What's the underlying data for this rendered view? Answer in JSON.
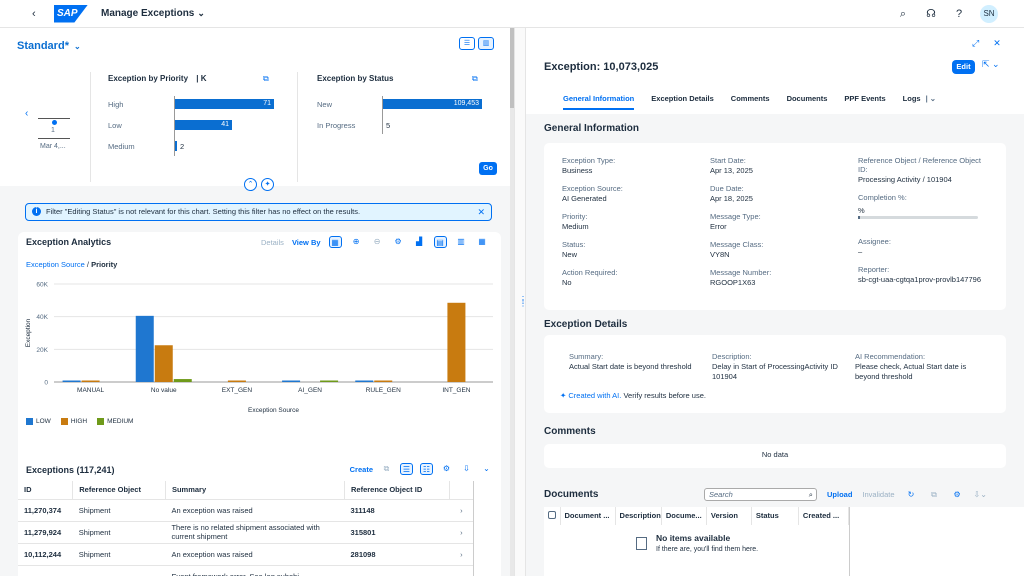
{
  "shell": {
    "back_glyph": "‹",
    "logo_text": "SAP",
    "app_title": "Manage Exceptions",
    "title_caret": "⌄",
    "icons": [
      "search-icon",
      "headset-icon",
      "help-icon"
    ],
    "avatar_initials": "SN"
  },
  "filterbar": {
    "variant": "Standard",
    "variant_mark": "*",
    "variant_caret": "⌄",
    "timeline": {
      "prev": "‹",
      "value": "1",
      "date": "Mar 4,..."
    },
    "priority_chart": {
      "title": "Exception by Priority",
      "unit": "| K",
      "rows": [
        {
          "label": "High",
          "value": 71
        },
        {
          "label": "Low",
          "value": 41
        },
        {
          "label": "Medium",
          "value": 2
        }
      ]
    },
    "status_chart": {
      "title": "Exception by Status",
      "rows": [
        {
          "label": "New",
          "value": 109453,
          "display": "109,453"
        },
        {
          "label": "In Progress",
          "value": 5,
          "display": "5"
        }
      ]
    },
    "go_label": "Go"
  },
  "info_message": "Filter \"Editing Status\" is not relevant for this chart. Setting this filter has no effect on the results.",
  "analytics": {
    "title": "Exception Analytics",
    "details_label": "Details",
    "view_by_label": "View By",
    "breadcrumb_link": "Exception Source",
    "breadcrumb_sep": "/",
    "breadcrumb_current": "Priority"
  },
  "chart_data": {
    "type": "bar",
    "title": "",
    "xlabel": "Exception Source",
    "ylabel": "Exception",
    "categories": [
      "MANUAL",
      "No value",
      "EXT_GEN",
      "AI_GEN",
      "RULE_GEN",
      "INT_GEN"
    ],
    "series": [
      {
        "name": "LOW",
        "color": "#1f77d0",
        "values": [
          800,
          40500,
          0,
          500,
          300,
          0
        ]
      },
      {
        "name": "HIGH",
        "color": "#c87b10",
        "values": [
          600,
          22500,
          600,
          0,
          800,
          48500
        ]
      },
      {
        "name": "MEDIUM",
        "color": "#6f9a1a",
        "values": [
          0,
          1800,
          0,
          200,
          0,
          0
        ]
      }
    ],
    "yticks": [
      0,
      20000,
      40000,
      60000
    ],
    "ytick_labels": [
      "0",
      "20K",
      "40K",
      "60K"
    ],
    "ylim": [
      0,
      60000
    ],
    "legend": "bottom-left",
    "grid": true
  },
  "exceptions": {
    "title": "Exceptions (117,241)",
    "create_label": "Create",
    "columns": [
      "ID",
      "Reference Object",
      "Summary",
      "Reference Object ID"
    ],
    "rows": [
      {
        "id": "11,270,374",
        "ref": "Shipment",
        "summary": "An exception was raised",
        "ref_id": "311148"
      },
      {
        "id": "11,279,924",
        "ref": "Shipment",
        "summary": "There is no related shipment associated with current shipment",
        "ref_id": "315801"
      },
      {
        "id": "10,112,244",
        "ref": "Shipment",
        "summary": "An exception was raised",
        "ref_id": "281098"
      },
      {
        "id": "",
        "ref": "",
        "summary": "Event framework error. See log subobj",
        "ref_id": ""
      }
    ]
  },
  "object": {
    "title": "Exception:",
    "number": "10,073,025",
    "edit_label": "Edit",
    "tabs": [
      "General Information",
      "Exception Details",
      "Comments",
      "Documents",
      "PPF Events",
      "Logs"
    ],
    "general_title": "General Information",
    "general": {
      "exception_type": {
        "label": "Exception Type:",
        "value": "Business"
      },
      "exception_source": {
        "label": "Exception Source:",
        "value": "AI Generated"
      },
      "priority": {
        "label": "Priority:",
        "value": "Medium"
      },
      "status": {
        "label": "Status:",
        "value": "New"
      },
      "action_required": {
        "label": "Action Required:",
        "value": "No"
      },
      "start_date": {
        "label": "Start Date:",
        "value": "Apr 13, 2025"
      },
      "due_date": {
        "label": "Due Date:",
        "value": "Apr 18, 2025"
      },
      "message_type": {
        "label": "Message Type:",
        "value": "Error"
      },
      "message_class": {
        "label": "Message Class:",
        "value": "VY8N"
      },
      "message_number": {
        "label": "Message Number:",
        "value": "RGOOP1X63"
      },
      "ref_object": {
        "label1": "Reference Object / Reference Object",
        "label2": "ID:",
        "value": "Processing Activity   /   101904"
      },
      "completion": {
        "label": "Completion %:",
        "value": "%",
        "percent": 0
      },
      "assignee": {
        "label": "Assignee:",
        "value": "–"
      },
      "reporter": {
        "label": "Reporter:",
        "value": "sb-cgt-uaa-cgtqa1prov-provlb147796"
      }
    },
    "details_title": "Exception Details",
    "details": {
      "summary": {
        "label": "Summary:",
        "value": "Actual Start date is beyond threshold"
      },
      "description": {
        "label": "Description:",
        "value1": "Delay in Start of ProcessingActivity ID",
        "value2": "101904"
      },
      "ai_rec": {
        "label": "AI Recommendation:",
        "value1": "Please check, Actual Start date is",
        "value2": "beyond threshold"
      },
      "ai_link": "Created with AI.",
      "ai_note": "Verify results before use."
    },
    "comments_title": "Comments",
    "comments_empty": "No data",
    "documents_title": "Documents",
    "search_placeholder": "Search",
    "upload_label": "Upload",
    "invalidate_label": "Invalidate",
    "doc_columns": [
      "Document ...",
      "Description",
      "Docume...",
      "Version",
      "Status",
      "Created ..."
    ],
    "no_items": "No items available",
    "no_items_sub": "If there are, you'll find them here."
  }
}
